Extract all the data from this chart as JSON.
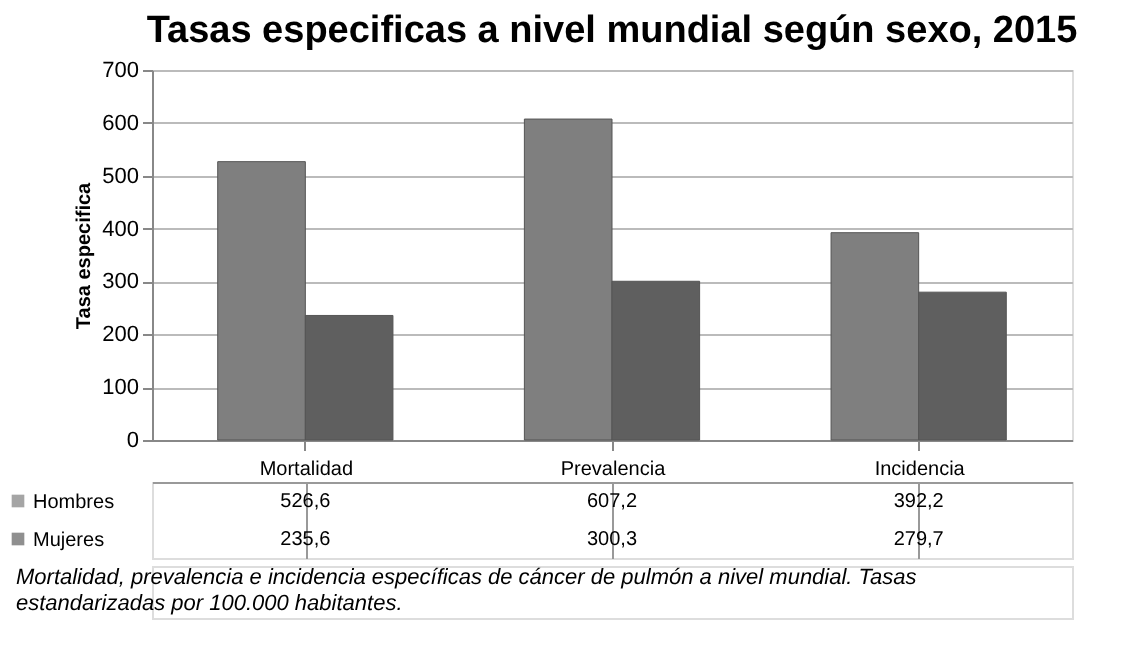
{
  "chart_data": {
    "type": "bar",
    "title": "Tasas especificas a nivel mundial según sexo, 2015",
    "ylabel": "Tasa especifica",
    "categories": [
      "Mortalidad",
      "Prevalencia",
      "Incidencia"
    ],
    "series": [
      {
        "name": "Hombres",
        "color": "#7f7f7f",
        "values": [
          526.6,
          607.2,
          392.2
        ],
        "value_labels": [
          "526,6",
          "607,2",
          "392,2"
        ]
      },
      {
        "name": "Mujeres",
        "color": "#5f5f5f",
        "values": [
          235.6,
          300.3,
          279.7
        ],
        "value_labels": [
          "235,6",
          "300,3",
          "279,7"
        ]
      }
    ],
    "ylim": [
      0,
      700
    ],
    "yticks": [
      0,
      100,
      200,
      300,
      400,
      500,
      600,
      700
    ],
    "grid": "y",
    "legend": "bottom",
    "annotations": [
      "Mortalidad, prevalencia e incidencia específicas de cáncer de pulmón a nivel mundial. Tasas estandarizadas por 100.000 habitantes."
    ]
  }
}
